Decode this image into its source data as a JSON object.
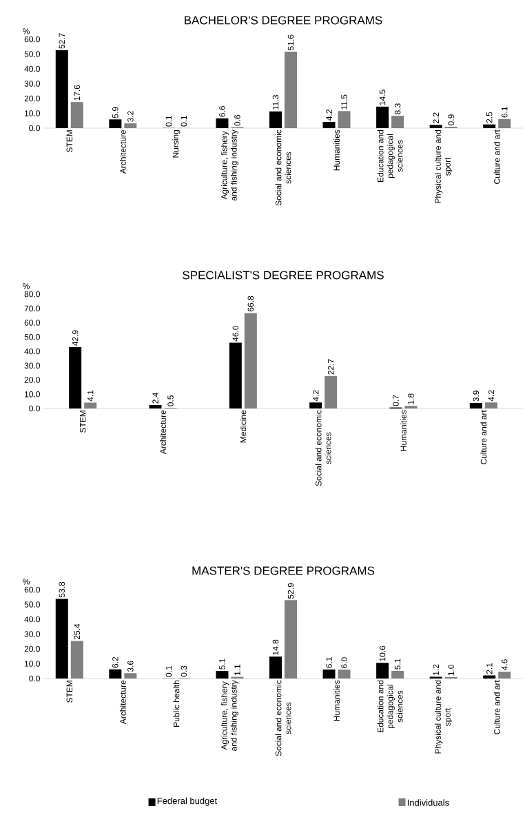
{
  "chart_data": [
    {
      "type": "bar",
      "title": "BACHELOR'S DEGREE PROGRAMS",
      "ylabel": "%",
      "categories": [
        "STEM",
        "Architecture",
        "Nursing",
        "Agriculture, fishery and fishing industry",
        "Social and economic sciences",
        "Humanities",
        "Education and pedagogical sciences",
        "Physical culture and sport",
        "Culture and art"
      ],
      "series": [
        {
          "color": "#000000",
          "values": [
            52.7,
            5.9,
            0.1,
            6.6,
            11.3,
            4.2,
            14.5,
            2.2,
            2.5
          ],
          "value_labels": [
            "52.7",
            "5.9",
            "0.1",
            "6.6",
            "11.3",
            "4.2",
            "14.5",
            "2.2",
            "2.5"
          ]
        },
        {
          "color": "#808080",
          "values": [
            17.6,
            3.2,
            0.1,
            0.6,
            51.6,
            11.5,
            8.3,
            0.9,
            6.1
          ],
          "value_labels": [
            "17.6",
            "3.2",
            "0.1",
            "0.6",
            "51.6",
            "11.5",
            "8.3",
            "0.9",
            "6.1"
          ]
        }
      ],
      "ylim": [
        0,
        60
      ],
      "yticks": [
        {
          "value": 0,
          "label": "0.0"
        },
        {
          "value": 10,
          "label": "10.0"
        },
        {
          "value": 20,
          "label": "20.0"
        },
        {
          "value": 30,
          "label": "30.0"
        },
        {
          "value": 40,
          "label": "40.0"
        },
        {
          "value": 50,
          "label": "50.0"
        },
        {
          "value": 60,
          "label": "60.0"
        }
      ]
    },
    {
      "type": "bar",
      "title": "SPECIALIST'S DEGREE PROGRAMS",
      "ylabel": "%",
      "categories": [
        "STEM",
        "Architecture",
        "Medicine",
        "Social and economic sciences",
        "Humanities",
        "Culture and art"
      ],
      "series": [
        {
          "color": "#000000",
          "values": [
            42.9,
            2.4,
            46.0,
            4.2,
            0.7,
            3.9
          ],
          "value_labels": [
            "42.9",
            "2.4",
            "46.0",
            "4.2",
            "0.7",
            "3.9"
          ]
        },
        {
          "color": "#808080",
          "values": [
            4.1,
            0.5,
            66.8,
            22.7,
            1.8,
            4.2
          ],
          "value_labels": [
            "4.1",
            "0.5",
            "66.8",
            "22.7",
            "1.8",
            "4.2"
          ]
        }
      ],
      "ylim": [
        0,
        80
      ],
      "yticks": [
        {
          "value": 0,
          "label": "0.0"
        },
        {
          "value": 10,
          "label": "10.0"
        },
        {
          "value": 20,
          "label": "20.0"
        },
        {
          "value": 30,
          "label": "30.0"
        },
        {
          "value": 40,
          "label": "40.0"
        },
        {
          "value": 50,
          "label": "50.0"
        },
        {
          "value": 60,
          "label": "60.0"
        },
        {
          "value": 70,
          "label": "70.0"
        },
        {
          "value": 80,
          "label": "80.0"
        }
      ]
    },
    {
      "type": "bar",
      "title": "MASTER'S DEGREE PROGRAMS",
      "ylabel": "%",
      "categories": [
        "STEM",
        "Architecture",
        "Public health",
        "Agriculture, fishery and fishing industry",
        "Social and economic sciences",
        "Humanities",
        "Education and pedagogical sciences",
        "Physical culture and sport",
        "Culture and art"
      ],
      "series": [
        {
          "name": "Federal budget",
          "color": "#000000",
          "values": [
            53.8,
            6.2,
            0.1,
            5.1,
            14.8,
            6.1,
            10.6,
            1.2,
            2.1
          ],
          "value_labels": [
            "53.8",
            "6.2",
            "0.1",
            "5.1",
            "14.8",
            "6.1",
            "10.6",
            "1.2",
            "2.1"
          ]
        },
        {
          "name": "Individuals",
          "color": "#808080",
          "values": [
            25.4,
            3.6,
            0.3,
            1.1,
            52.9,
            6.0,
            5.1,
            1.0,
            4.6
          ],
          "value_labels": [
            "25.4",
            "3.6",
            "0.3",
            "1.1",
            "52.9",
            "6.0",
            "5.1",
            "1.0",
            "4.6"
          ]
        }
      ],
      "ylim": [
        0,
        60
      ],
      "yticks": [
        {
          "value": 0,
          "label": "0.0"
        },
        {
          "value": 10,
          "label": "10.0"
        },
        {
          "value": 20,
          "label": "20.0"
        },
        {
          "value": 30,
          "label": "30.0"
        },
        {
          "value": 40,
          "label": "40.0"
        },
        {
          "value": 50,
          "label": "50.0"
        },
        {
          "value": 60,
          "label": "60.0"
        }
      ],
      "legend": "bottom"
    }
  ]
}
